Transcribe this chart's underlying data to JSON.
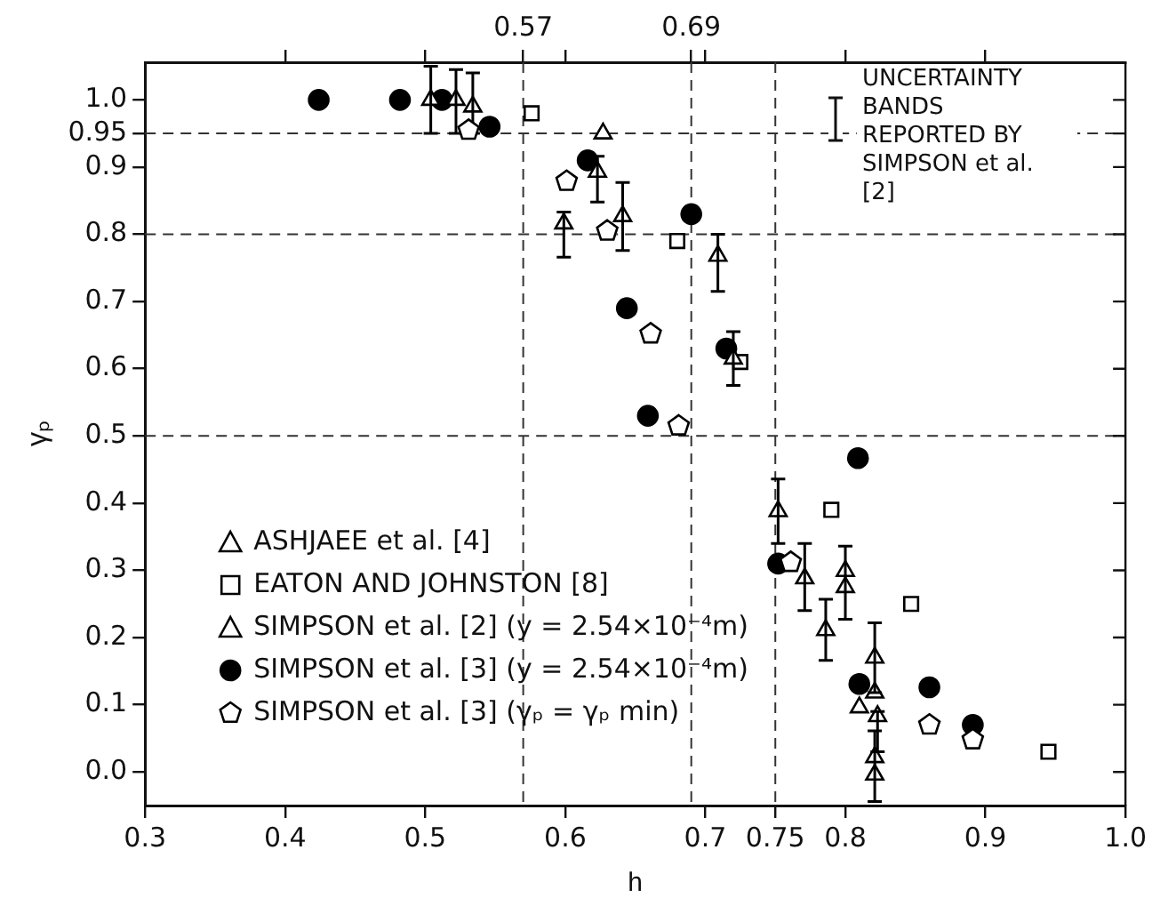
{
  "chart_data": {
    "type": "scatter",
    "xlabel": "h",
    "ylabel": "γₚ",
    "xlim": [
      0.3,
      1.0
    ],
    "ylim": [
      -0.05,
      1.056
    ],
    "xticks": [
      {
        "value": 0.3,
        "label": "0.3"
      },
      {
        "value": 0.4,
        "label": "0.4"
      },
      {
        "value": 0.5,
        "label": "0.5"
      },
      {
        "value": 0.6,
        "label": "0.6"
      },
      {
        "value": 0.7,
        "label": "0.7"
      },
      {
        "value": 0.75,
        "label": "0.75"
      },
      {
        "value": 0.8,
        "label": "0.8"
      },
      {
        "value": 0.9,
        "label": "0.9"
      },
      {
        "value": 1.0,
        "label": "1.0"
      }
    ],
    "x2lim": [
      0.3,
      1.0
    ],
    "x2ticks": [
      {
        "value": 0.4,
        "label": null
      },
      {
        "value": 0.5,
        "label": null
      },
      0.57,
      {
        "value": 0.6,
        "label": null
      },
      0.69,
      {
        "value": 0.7,
        "label": null
      },
      {
        "value": 0.8,
        "label": null
      },
      {
        "value": 0.9,
        "label": null
      }
    ],
    "yticks": [
      {
        "value": 0,
        "label": "0.0"
      },
      0.1,
      0.2,
      0.3,
      0.4,
      0.5,
      0.6,
      0.7,
      0.8,
      0.9,
      0.95,
      {
        "value": 1.0,
        "label": "1.0"
      }
    ],
    "grid": false,
    "legend": "bottom left",
    "ref_lines": [
      {
        "axis": "x",
        "value": 0.57,
        "line_style": "dashed"
      },
      {
        "axis": "x",
        "value": 0.69,
        "line_style": "dashed"
      },
      {
        "axis": "x",
        "value": 0.75,
        "line_style": "dashed"
      },
      {
        "axis": "y",
        "value": 0.95,
        "line_style": "dashed"
      },
      {
        "axis": "y",
        "value": 0.8,
        "line_style": "dashed"
      },
      {
        "axis": "y",
        "value": 0.5,
        "line_style": "dashed"
      }
    ],
    "annotations": [
      "UNCERTAINTY BANDS REPORTED BY SIMPSON et al. [2]"
    ],
    "series": [
      {
        "name": "ASHJAEE et al. [4]",
        "color": "#000000",
        "marker": "triangle",
        "x": [
          0.627
        ],
        "values": [
          0.95
        ]
      },
      {
        "name": "EATON AND JOHNSTON [8]",
        "color": "#000000",
        "marker": "square",
        "x": [
          0.576,
          0.68,
          0.725,
          0.79,
          0.847,
          0.945
        ],
        "values": [
          0.98,
          0.79,
          0.61,
          0.39,
          0.25,
          0.03
        ]
      },
      {
        "name": "SIMPSON et al. [2] (y = 2.54×10⁻⁴m)",
        "color": "#000000",
        "marker": "triangle",
        "x": [
          0.504,
          0.522,
          0.534,
          0.599,
          0.623,
          0.641,
          0.709,
          0.72,
          0.752,
          0.771,
          0.786,
          0.8,
          0.8,
          0.821,
          0.821,
          0.81,
          0.823,
          0.821,
          0.821
        ],
        "values": [
          1.0,
          1.0,
          0.99,
          0.816,
          0.893,
          0.827,
          0.768,
          0.615,
          0.388,
          0.288,
          0.211,
          0.299,
          0.275,
          0.17,
          0.118,
          0.096,
          0.083,
          0.022,
          -0.004
        ],
        "errors": [
          [
            0.95,
            1.05
          ],
          [
            0.95,
            1.045
          ],
          [
            0.95,
            1.04
          ],
          [
            0.766,
            0.833
          ],
          [
            0.848,
            0.916
          ],
          [
            0.776,
            0.877
          ],
          [
            0.715,
            0.8
          ],
          [
            0.575,
            0.655
          ],
          [
            0.34,
            0.436
          ],
          [
            0.24,
            0.34
          ],
          [
            0.166,
            0.257
          ],
          [
            0.227,
            0.336
          ],
          null,
          [
            0.118,
            0.222
          ],
          null,
          null,
          [
            0.03,
            0.09
          ],
          null,
          [
            -0.044,
            0.061
          ]
        ]
      },
      {
        "name": "SIMPSON et al. [3] (y = 2.54×10⁻⁴m)",
        "color": "#000000",
        "marker": "circle",
        "x": [
          0.424,
          0.482,
          0.512,
          0.546,
          0.616,
          0.69,
          0.644,
          0.659,
          0.715,
          0.809,
          0.752,
          0.81,
          0.86,
          0.891
        ],
        "values": [
          1.0,
          1.0,
          1.0,
          0.96,
          0.91,
          0.83,
          0.69,
          0.53,
          0.63,
          0.467,
          0.31,
          0.131,
          0.126,
          0.07
        ]
      },
      {
        "name": "SIMPSON et al. [3] (γₚ = γₚ min)",
        "color": "#000000",
        "x": [
          0.531,
          0.601,
          0.63,
          0.661,
          0.681,
          0.761,
          0.86,
          0.891
        ],
        "values": [
          0.955,
          0.879,
          0.805,
          0.652,
          0.515,
          0.312,
          0.07,
          0.048
        ]
      }
    ]
  }
}
